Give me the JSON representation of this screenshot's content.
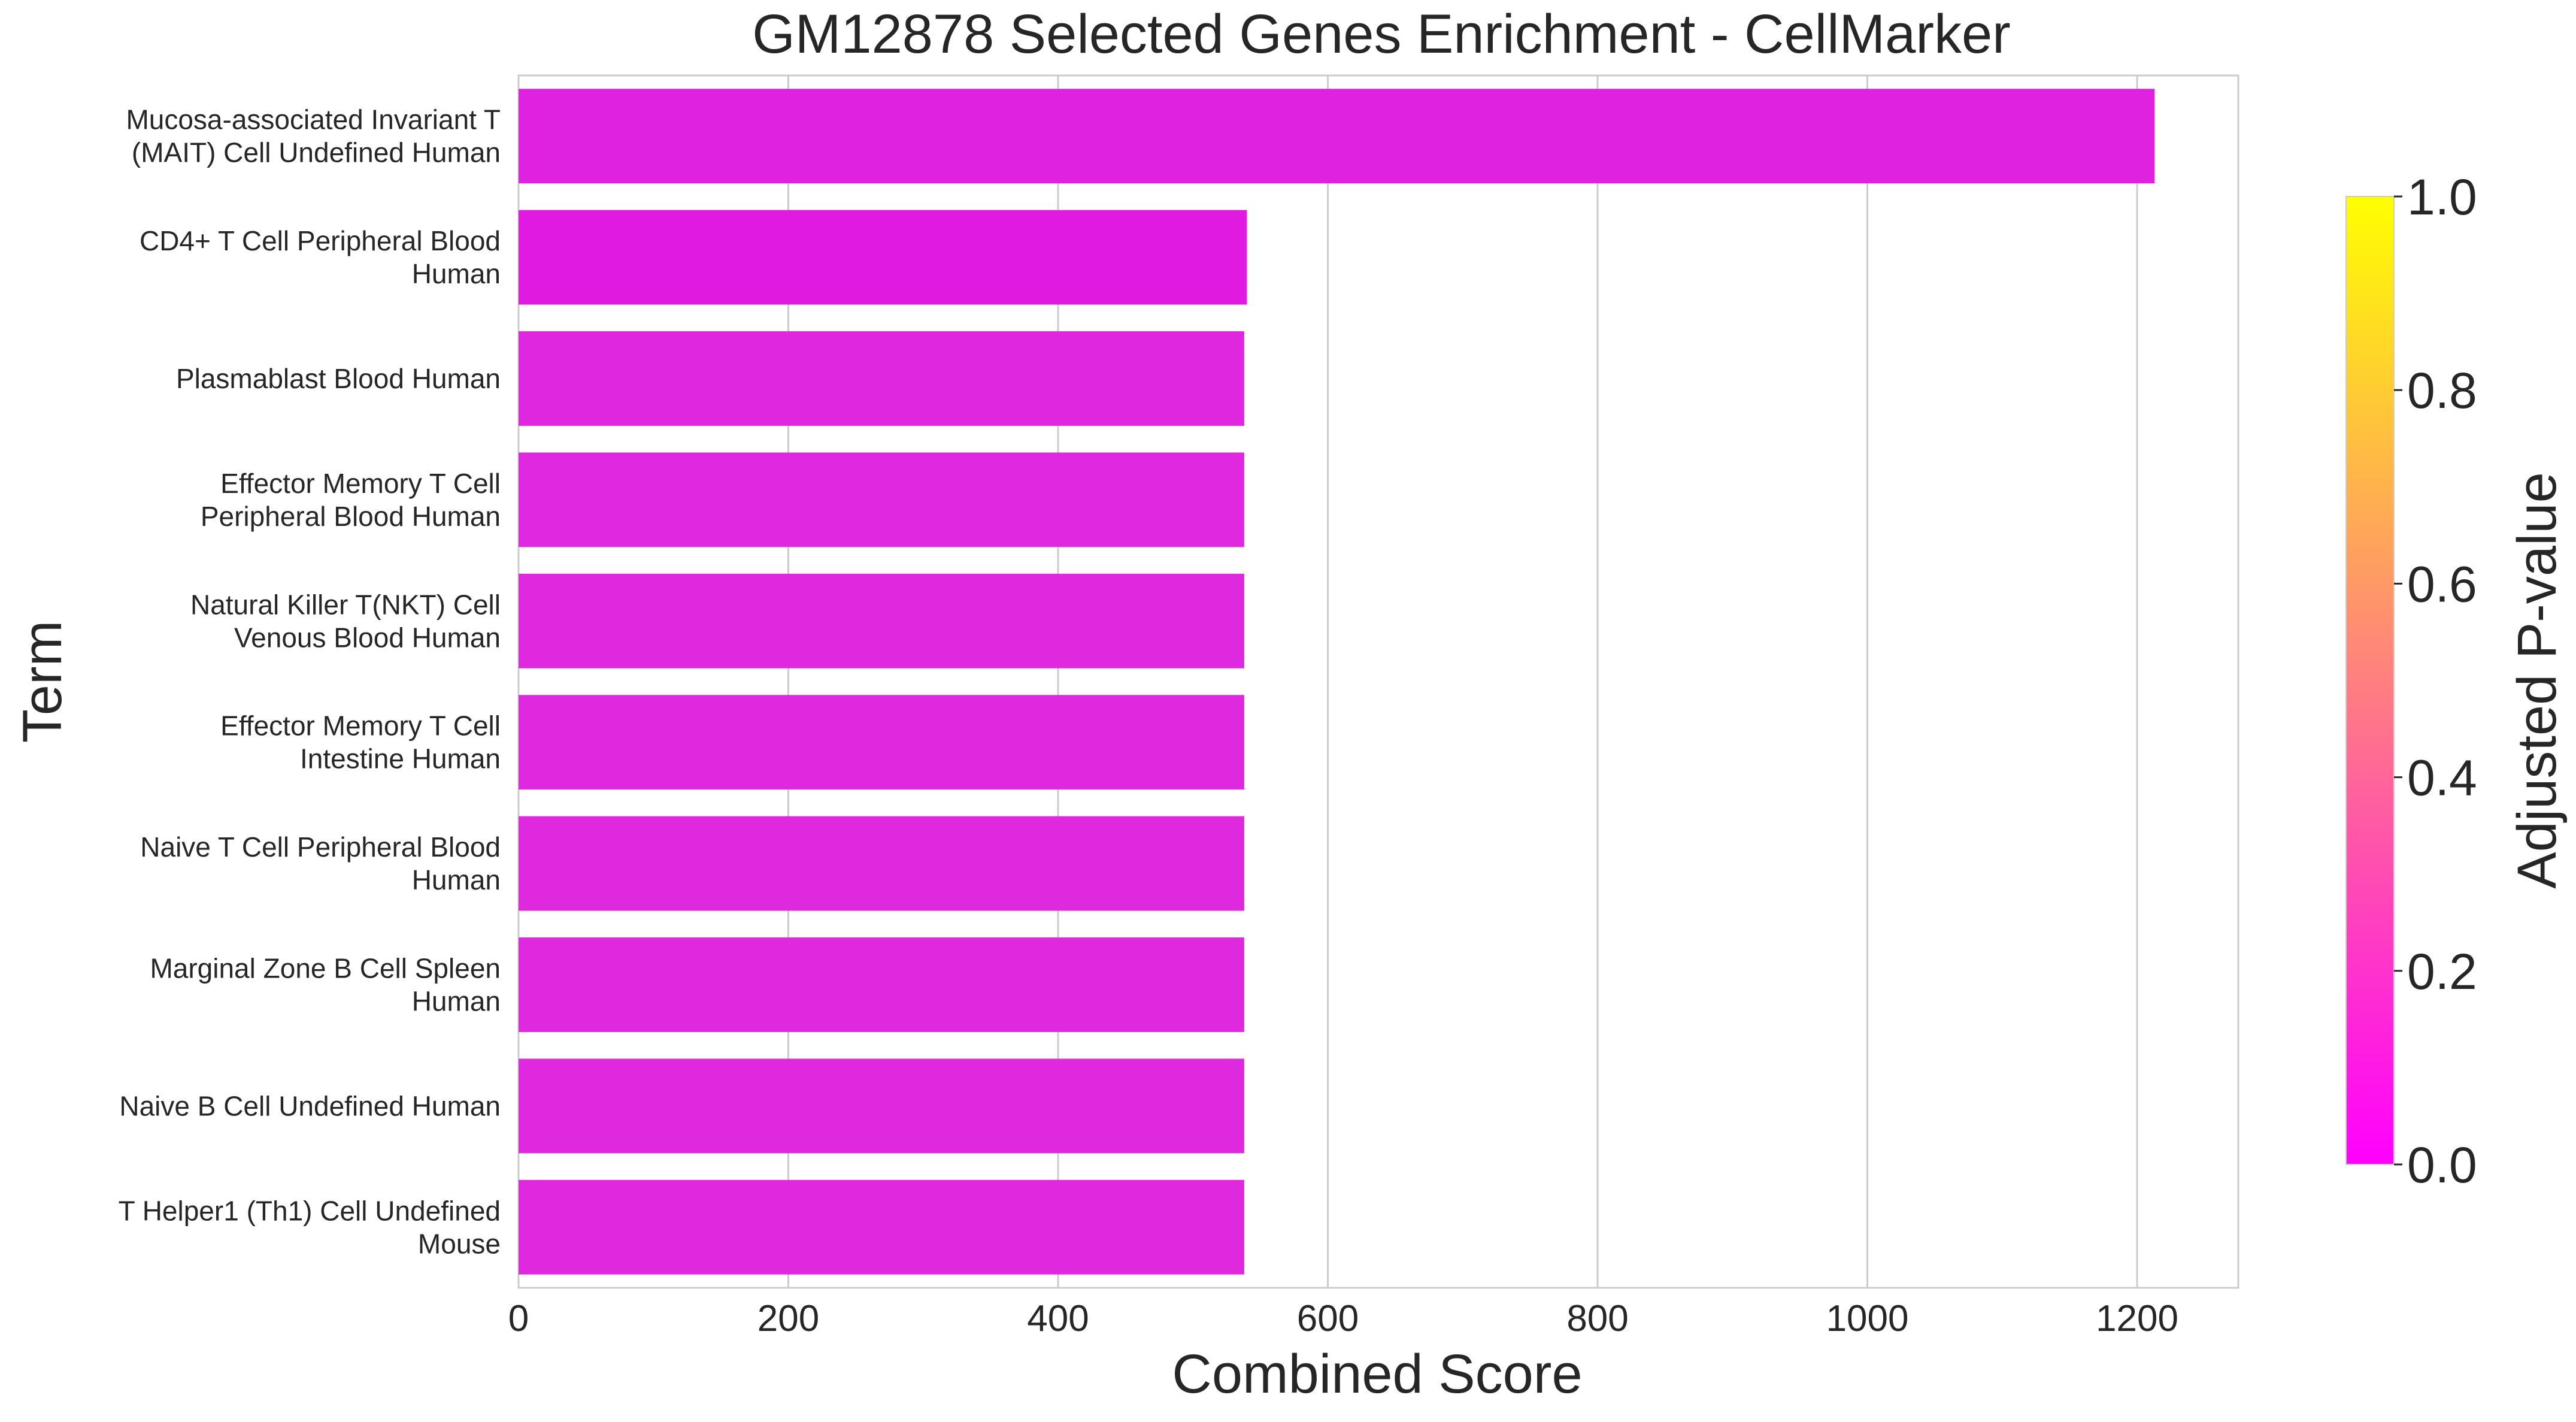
{
  "chart_data": {
    "type": "bar",
    "orientation": "horizontal",
    "title": "GM12878 Selected Genes Enrichment - CellMarker",
    "xlabel": "Combined Score",
    "ylabel": "Term",
    "xlim": [
      0,
      1275
    ],
    "xticks": [
      0,
      200,
      400,
      600,
      800,
      1000,
      1200
    ],
    "xtick_labels": [
      "0",
      "200",
      "400",
      "600",
      "800",
      "1000",
      "1200"
    ],
    "grid": "vertical",
    "categories": [
      [
        "Mucosa-associated Invariant T",
        "(MAIT) Cell Undefined Human"
      ],
      [
        "CD4+ T Cell Peripheral Blood",
        "Human"
      ],
      [
        "Plasmablast Blood Human"
      ],
      [
        "Effector Memory T Cell",
        "Peripheral Blood Human"
      ],
      [
        "Natural Killer T(NKT) Cell",
        "Venous Blood Human"
      ],
      [
        "Effector Memory T Cell",
        "Intestine Human"
      ],
      [
        "Naive T Cell Peripheral Blood",
        "Human"
      ],
      [
        "Marginal Zone B Cell Spleen",
        "Human"
      ],
      [
        "Naive B Cell Undefined Human"
      ],
      [
        "T Helper1 (Th1) Cell Undefined",
        "Mouse"
      ]
    ],
    "values": [
      1213,
      540,
      538,
      538,
      538,
      538,
      538,
      538,
      538,
      538
    ],
    "colors": [
      "#df22df",
      "#e01ae0",
      "#df27df",
      "#df28df",
      "#df29df",
      "#df29df",
      "#df29df",
      "#df29df",
      "#df29df",
      "#df29df"
    ],
    "colorbar": {
      "label": "Adjusted P-value",
      "range": [
        0.0,
        1.0
      ],
      "ticks": [
        "0.0",
        "0.2",
        "0.4",
        "0.6",
        "0.8",
        "1.0"
      ],
      "colormap": "spring",
      "colors": [
        "#ff00ff",
        "#ffff00"
      ]
    }
  }
}
